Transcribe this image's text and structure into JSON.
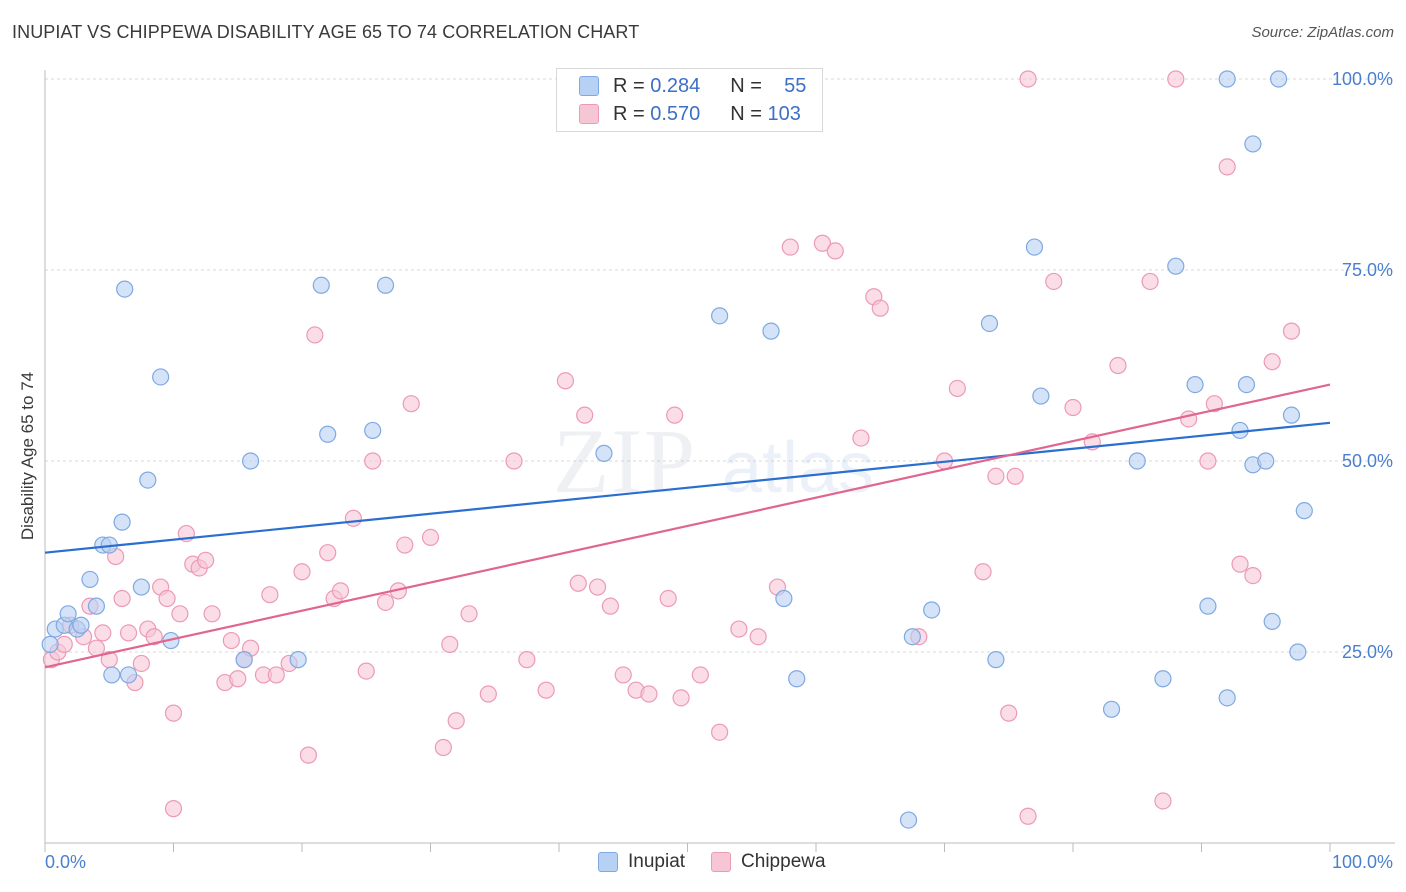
{
  "header": {
    "title": "INUPIAT VS CHIPPEWA DISABILITY AGE 65 TO 74 CORRELATION CHART",
    "source": "Source: ZipAtlas.com"
  },
  "watermark": {
    "zip": "ZIP",
    "atlas": "atlas"
  },
  "legend": {
    "rows": [
      {
        "r_label": "R =",
        "r_value": "0.284",
        "n_label": "N =",
        "n_value": "55",
        "color": "#7fb0ea"
      },
      {
        "r_label": "R =",
        "r_value": "0.570",
        "n_label": "N =",
        "n_value": "103",
        "color": "#f1a1bc"
      }
    ]
  },
  "bottom_legend": {
    "inupiat": "Inupiat",
    "chippewa": "Chippewa"
  },
  "chart_data": {
    "type": "scatter",
    "ylabel": "Disability Age 65 to 74",
    "xlabel": "",
    "xlim": [
      0,
      100
    ],
    "ylim": [
      0,
      105
    ],
    "x_tick_labels": [
      "0.0%",
      "100.0%"
    ],
    "y_ticks": [
      {
        "value": 25,
        "label": "25.0%"
      },
      {
        "value": 50,
        "label": "50.0%"
      },
      {
        "value": 75,
        "label": "75.0%"
      },
      {
        "value": 100,
        "label": "100.0%"
      }
    ],
    "colors": {
      "inupiat_fill": "#b7d1f4",
      "inupiat_stroke": "#7fa9e2",
      "inupiat_line": "#2a6fd0",
      "chippewa_fill": "#f7c6d5",
      "chippewa_stroke": "#ec9ab5",
      "chippewa_line": "#e0668f"
    },
    "series": [
      {
        "name": "Inupiat",
        "trend": {
          "x": [
            0,
            100
          ],
          "y": [
            38,
            55
          ]
        },
        "points": [
          [
            0.8,
            28
          ],
          [
            1.5,
            28.5
          ],
          [
            1.8,
            30
          ],
          [
            2.5,
            28
          ],
          [
            2.8,
            28.5
          ],
          [
            3.5,
            34.5
          ],
          [
            4,
            31
          ],
          [
            4.5,
            39
          ],
          [
            5,
            39
          ],
          [
            5.2,
            22
          ],
          [
            6.2,
            72.5
          ],
          [
            6,
            42
          ],
          [
            6.5,
            22
          ],
          [
            7.5,
            33.5
          ],
          [
            8,
            47.5
          ],
          [
            9,
            61
          ],
          [
            9.8,
            26.5
          ],
          [
            15.5,
            24
          ],
          [
            16,
            50
          ],
          [
            19.7,
            24
          ],
          [
            21.5,
            73
          ],
          [
            22,
            53.5
          ],
          [
            25.5,
            54
          ],
          [
            26.5,
            73
          ],
          [
            43.5,
            51
          ],
          [
            52.5,
            69
          ],
          [
            56.5,
            67
          ],
          [
            57.5,
            32
          ],
          [
            58.5,
            21.5
          ],
          [
            67.5,
            27
          ],
          [
            69,
            30.5
          ],
          [
            73.5,
            68
          ],
          [
            74,
            24
          ],
          [
            77,
            78
          ],
          [
            77.5,
            58.5
          ],
          [
            83,
            17.5
          ],
          [
            85,
            50
          ],
          [
            87,
            21.5
          ],
          [
            88,
            75.5
          ],
          [
            89.5,
            60
          ],
          [
            90.5,
            31
          ],
          [
            93,
            54
          ],
          [
            93.5,
            60
          ],
          [
            94,
            49.5
          ],
          [
            95,
            50
          ],
          [
            97,
            56
          ],
          [
            97.5,
            25
          ],
          [
            98,
            43.5
          ],
          [
            96,
            100
          ],
          [
            94,
            91.5
          ],
          [
            92,
            19
          ],
          [
            95.5,
            29
          ],
          [
            92,
            100
          ],
          [
            67.2,
            3
          ],
          [
            0.4,
            26
          ]
        ]
      },
      {
        "name": "Chippewa",
        "trend": {
          "x": [
            0,
            100
          ],
          "y": [
            23,
            60
          ]
        },
        "points": [
          [
            0.5,
            24
          ],
          [
            1,
            25
          ],
          [
            1.5,
            26
          ],
          [
            2,
            28.5
          ],
          [
            3,
            27
          ],
          [
            3.5,
            31
          ],
          [
            4,
            25.5
          ],
          [
            4.5,
            27.5
          ],
          [
            5,
            24
          ],
          [
            5.5,
            37.5
          ],
          [
            6,
            32
          ],
          [
            6.5,
            27.5
          ],
          [
            7,
            21
          ],
          [
            7.5,
            23.5
          ],
          [
            8,
            28
          ],
          [
            8.5,
            27
          ],
          [
            9,
            33.5
          ],
          [
            9.5,
            32
          ],
          [
            10,
            17
          ],
          [
            10.5,
            30
          ],
          [
            11,
            40.5
          ],
          [
            11.5,
            36.5
          ],
          [
            12,
            36
          ],
          [
            12.5,
            37
          ],
          [
            13,
            30
          ],
          [
            14,
            21
          ],
          [
            14.5,
            26.5
          ],
          [
            15,
            21.5
          ],
          [
            15.5,
            24
          ],
          [
            16,
            25.5
          ],
          [
            17,
            22
          ],
          [
            17.5,
            32.5
          ],
          [
            18,
            22
          ],
          [
            19,
            23.5
          ],
          [
            20,
            35.5
          ],
          [
            20.5,
            11.5
          ],
          [
            21,
            66.5
          ],
          [
            22,
            38
          ],
          [
            22.5,
            32
          ],
          [
            23,
            33
          ],
          [
            24,
            42.5
          ],
          [
            25,
            22.5
          ],
          [
            25.5,
            50
          ],
          [
            26.5,
            31.5
          ],
          [
            27.5,
            33
          ],
          [
            28,
            39
          ],
          [
            28.5,
            57.5
          ],
          [
            30,
            40
          ],
          [
            31,
            12.5
          ],
          [
            31.5,
            26
          ],
          [
            32,
            16
          ],
          [
            33,
            30
          ],
          [
            34.5,
            19.5
          ],
          [
            36.5,
            50
          ],
          [
            37.5,
            24
          ],
          [
            39,
            20
          ],
          [
            40.5,
            60.5
          ],
          [
            41.5,
            34
          ],
          [
            42,
            56
          ],
          [
            43,
            33.5
          ],
          [
            44,
            31
          ],
          [
            45,
            22
          ],
          [
            46,
            20
          ],
          [
            47,
            19.5
          ],
          [
            48.5,
            32
          ],
          [
            49,
            56
          ],
          [
            49.5,
            19
          ],
          [
            51,
            22
          ],
          [
            52.5,
            14.5
          ],
          [
            54,
            28
          ],
          [
            55.5,
            27
          ],
          [
            57,
            33.5
          ],
          [
            58,
            78
          ],
          [
            60.5,
            78.5
          ],
          [
            61.5,
            77.5
          ],
          [
            63.5,
            53
          ],
          [
            64.5,
            71.5
          ],
          [
            65,
            70
          ],
          [
            68,
            27
          ],
          [
            70,
            50
          ],
          [
            71,
            59.5
          ],
          [
            73,
            35.5
          ],
          [
            74,
            48
          ],
          [
            75,
            17
          ],
          [
            75.5,
            48
          ],
          [
            76.5,
            100
          ],
          [
            78.5,
            73.5
          ],
          [
            80,
            57
          ],
          [
            81.5,
            52.5
          ],
          [
            83.5,
            62.5
          ],
          [
            86,
            73.5
          ],
          [
            87,
            5.5
          ],
          [
            88,
            100
          ],
          [
            89,
            55.5
          ],
          [
            90.5,
            50
          ],
          [
            91,
            57.5
          ],
          [
            92,
            88.5
          ],
          [
            93,
            36.5
          ],
          [
            94,
            35
          ],
          [
            95.5,
            63
          ],
          [
            97,
            67
          ],
          [
            76.5,
            3.5
          ],
          [
            10,
            4.5
          ]
        ]
      }
    ]
  }
}
